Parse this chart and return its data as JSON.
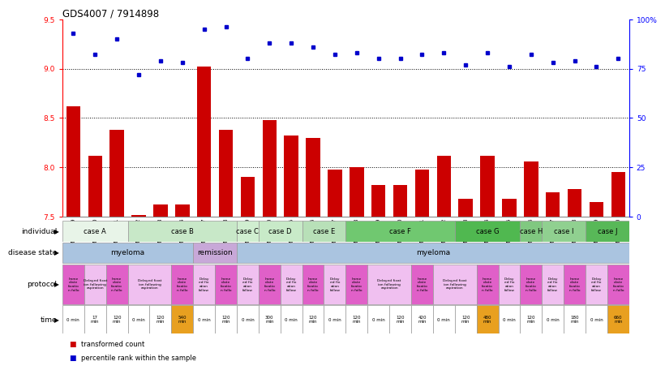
{
  "title": "GDS4007 / 7914898",
  "samples": [
    "GSM879509",
    "GSM879510",
    "GSM879511",
    "GSM879512",
    "GSM879513",
    "GSM879514",
    "GSM879517",
    "GSM879518",
    "GSM879519",
    "GSM879520",
    "GSM879525",
    "GSM879526",
    "GSM879527",
    "GSM879528",
    "GSM879529",
    "GSM879530",
    "GSM879531",
    "GSM879532",
    "GSM879533",
    "GSM879534",
    "GSM879535",
    "GSM879536",
    "GSM879537",
    "GSM879538",
    "GSM879539",
    "GSM879540"
  ],
  "bar_values": [
    8.62,
    8.12,
    8.38,
    7.52,
    7.62,
    7.62,
    9.02,
    8.38,
    7.9,
    8.48,
    8.32,
    8.3,
    7.98,
    8.0,
    7.82,
    7.82,
    7.98,
    8.12,
    7.68,
    8.12,
    7.68,
    8.06,
    7.75,
    7.78,
    7.65,
    7.95
  ],
  "dot_values": [
    93,
    82,
    90,
    72,
    79,
    78,
    95,
    96,
    80,
    88,
    88,
    86,
    82,
    83,
    80,
    80,
    82,
    83,
    77,
    83,
    76,
    82,
    78,
    79,
    76,
    80
  ],
  "ylim_left": [
    7.5,
    9.5
  ],
  "ylim_right": [
    0,
    100
  ],
  "yticks_left": [
    7.5,
    8.0,
    8.5,
    9.0,
    9.5
  ],
  "yticks_right": [
    0,
    25,
    50,
    75,
    100
  ],
  "ytick_labels_right": [
    "0",
    "25",
    "50",
    "75",
    "100%"
  ],
  "hlines": [
    8.0,
    8.5,
    9.0
  ],
  "bar_color": "#cc0000",
  "dot_color": "#0000cc",
  "individual_groups": [
    {
      "name": "case A",
      "start": 0,
      "end": 2,
      "color": "#e8f4e8"
    },
    {
      "name": "case B",
      "start": 3,
      "end": 7,
      "color": "#c8e8c8"
    },
    {
      "name": "case C",
      "start": 8,
      "end": 8,
      "color": "#d0eed0"
    },
    {
      "name": "case D",
      "start": 9,
      "end": 10,
      "color": "#c8eac8"
    },
    {
      "name": "case E",
      "start": 11,
      "end": 12,
      "color": "#b8e0b8"
    },
    {
      "name": "case F",
      "start": 13,
      "end": 17,
      "color": "#70c870"
    },
    {
      "name": "case G",
      "start": 18,
      "end": 20,
      "color": "#50b850"
    },
    {
      "name": "case H",
      "start": 21,
      "end": 21,
      "color": "#80c880"
    },
    {
      "name": "case I",
      "start": 22,
      "end": 23,
      "color": "#90d090"
    },
    {
      "name": "case J",
      "start": 24,
      "end": 25,
      "color": "#58b858"
    }
  ],
  "disease_groups": [
    {
      "name": "myeloma",
      "start": 0,
      "end": 5,
      "color": "#aac4e0"
    },
    {
      "name": "remission",
      "start": 6,
      "end": 7,
      "color": "#c8a8d8"
    },
    {
      "name": "myeloma",
      "start": 8,
      "end": 25,
      "color": "#aac4e0"
    }
  ],
  "protocol_groups": [
    {
      "name": "Imme\ndiate\nfixatio\nn follo",
      "start": 0,
      "end": 0,
      "color": "#e060c8"
    },
    {
      "name": "Delayed fixat\nion following\naspiration",
      "start": 1,
      "end": 1,
      "color": "#f0c0f0"
    },
    {
      "name": "Imme\ndiate\nfixatio\nn follo",
      "start": 2,
      "end": 2,
      "color": "#e060c8"
    },
    {
      "name": "Delayed fixat\nion following\naspiration",
      "start": 3,
      "end": 4,
      "color": "#f0c0f0"
    },
    {
      "name": "Imme\ndiate\nfixatio\nn follo",
      "start": 5,
      "end": 5,
      "color": "#e060c8"
    },
    {
      "name": "Delay\ned fix\nation\nfollow",
      "start": 6,
      "end": 6,
      "color": "#f0c0f0"
    },
    {
      "name": "Imme\ndiate\nfixatio\nn follo",
      "start": 7,
      "end": 7,
      "color": "#e060c8"
    },
    {
      "name": "Delay\ned fix\nation\nfollow",
      "start": 8,
      "end": 8,
      "color": "#f0c0f0"
    },
    {
      "name": "Imme\ndiate\nfixatio\nn follo",
      "start": 9,
      "end": 9,
      "color": "#e060c8"
    },
    {
      "name": "Delay\ned fix\nation\nfollow",
      "start": 10,
      "end": 10,
      "color": "#f0c0f0"
    },
    {
      "name": "Imme\ndiate\nfixatio\nn follo",
      "start": 11,
      "end": 11,
      "color": "#e060c8"
    },
    {
      "name": "Delay\ned fix\nation\nfollow",
      "start": 12,
      "end": 12,
      "color": "#f0c0f0"
    },
    {
      "name": "Imme\ndiate\nfixatio\nn follo",
      "start": 13,
      "end": 13,
      "color": "#e060c8"
    },
    {
      "name": "Delayed fixat\nion following\naspiration",
      "start": 14,
      "end": 15,
      "color": "#f0c0f0"
    },
    {
      "name": "Imme\ndiate\nfixatio\nn follo",
      "start": 16,
      "end": 16,
      "color": "#e060c8"
    },
    {
      "name": "Delayed fixat\nion following\naspiration",
      "start": 17,
      "end": 18,
      "color": "#f0c0f0"
    },
    {
      "name": "Imme\ndiate\nfixatio\nn follo",
      "start": 19,
      "end": 19,
      "color": "#e060c8"
    },
    {
      "name": "Delay\ned fix\nation\nfollow",
      "start": 20,
      "end": 20,
      "color": "#f0c0f0"
    },
    {
      "name": "Imme\ndiate\nfixatio\nn follo",
      "start": 21,
      "end": 21,
      "color": "#e060c8"
    },
    {
      "name": "Delay\ned fix\nation\nfollow",
      "start": 22,
      "end": 22,
      "color": "#f0c0f0"
    },
    {
      "name": "Imme\ndiate\nfixatio\nn follo",
      "start": 23,
      "end": 23,
      "color": "#e060c8"
    },
    {
      "name": "Delay\ned fix\nation\nfollow",
      "start": 24,
      "end": 24,
      "color": "#f0c0f0"
    },
    {
      "name": "Imme\ndiate\nfixatio\nn follo",
      "start": 25,
      "end": 25,
      "color": "#e060c8"
    }
  ],
  "time_entries": [
    {
      "label": "0 min",
      "color": "#ffffff"
    },
    {
      "label": "17\nmin",
      "color": "#ffffff"
    },
    {
      "label": "120\nmin",
      "color": "#ffffff"
    },
    {
      "label": "0 min",
      "color": "#ffffff"
    },
    {
      "label": "120\nmin",
      "color": "#ffffff"
    },
    {
      "label": "540\nmin",
      "color": "#e8a020"
    },
    {
      "label": "0 min",
      "color": "#ffffff"
    },
    {
      "label": "120\nmin",
      "color": "#ffffff"
    },
    {
      "label": "0 min",
      "color": "#ffffff"
    },
    {
      "label": "300\nmin",
      "color": "#ffffff"
    },
    {
      "label": "0 min",
      "color": "#ffffff"
    },
    {
      "label": "120\nmin",
      "color": "#ffffff"
    },
    {
      "label": "0 min",
      "color": "#ffffff"
    },
    {
      "label": "120\nmin",
      "color": "#ffffff"
    },
    {
      "label": "0 min",
      "color": "#ffffff"
    },
    {
      "label": "120\nmin",
      "color": "#ffffff"
    },
    {
      "label": "420\nmin",
      "color": "#ffffff"
    },
    {
      "label": "0 min",
      "color": "#ffffff"
    },
    {
      "label": "120\nmin",
      "color": "#ffffff"
    },
    {
      "label": "480\nmin",
      "color": "#e8a020"
    },
    {
      "label": "0 min",
      "color": "#ffffff"
    },
    {
      "label": "120\nmin",
      "color": "#ffffff"
    },
    {
      "label": "0 min",
      "color": "#ffffff"
    },
    {
      "label": "180\nmin",
      "color": "#ffffff"
    },
    {
      "label": "0 min",
      "color": "#ffffff"
    },
    {
      "label": "660\nmin",
      "color": "#e8a020"
    }
  ],
  "row_labels": [
    "individual",
    "disease state",
    "protocol",
    "time"
  ],
  "legend_items": [
    {
      "label": "transformed count",
      "color": "#cc0000"
    },
    {
      "label": "percentile rank within the sample",
      "color": "#0000cc"
    }
  ]
}
